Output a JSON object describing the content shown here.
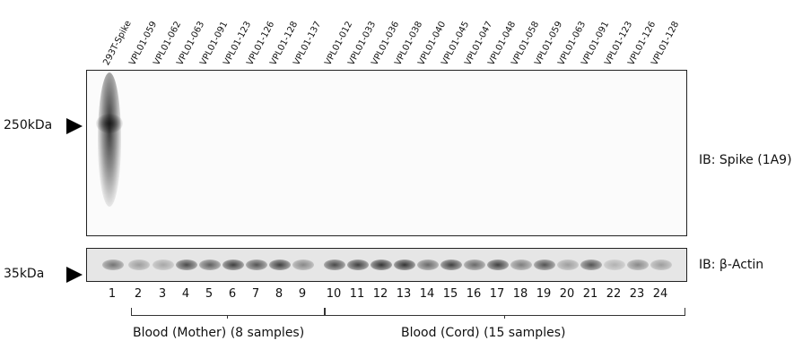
{
  "sample_labels": [
    "293T-Spike",
    "VPL01-059",
    "VPL01-062",
    "VPL01-063",
    "VPL01-091",
    "VPL01-123",
    "VPL01-126",
    "VPL01-128",
    "VPL01-137",
    "VPL01-012",
    "VPL01-033",
    "VPL01-036",
    "VPL01-038",
    "VPL01-040",
    "VPL01-045",
    "VPL01-047",
    "VPL01-048",
    "VPL01-058",
    "VPL01-059",
    "VPL01-063",
    "VPL01-091",
    "VPL01-123",
    "VPL01-126",
    "VPL01-128"
  ],
  "marker_top": "250kDa",
  "marker_bottom": "35kDa",
  "ib_top": "IB: Spike (1A9)",
  "ib_bottom": "IB: β-Actin",
  "lane_numbers": [
    "1",
    "2",
    "3",
    "4",
    "5",
    "6",
    "7",
    "8",
    "9",
    "10",
    "11",
    "12",
    "13",
    "14",
    "15",
    "16",
    "17",
    "18",
    "19",
    "20",
    "21",
    "22",
    "23",
    "24"
  ],
  "actin_intensity": [
    0.55,
    0.35,
    0.3,
    0.75,
    0.65,
    0.8,
    0.7,
    0.8,
    0.45,
    0.75,
    0.8,
    0.85,
    0.85,
    0.6,
    0.8,
    0.6,
    0.8,
    0.5,
    0.7,
    0.35,
    0.7,
    0.25,
    0.45,
    0.35
  ],
  "group_mother": "Blood (Mother) (8 samples)",
  "group_cord": "Blood (Cord) (15 samples)",
  "colors": {
    "band": "#1a1a1a",
    "border": "#222222"
  }
}
